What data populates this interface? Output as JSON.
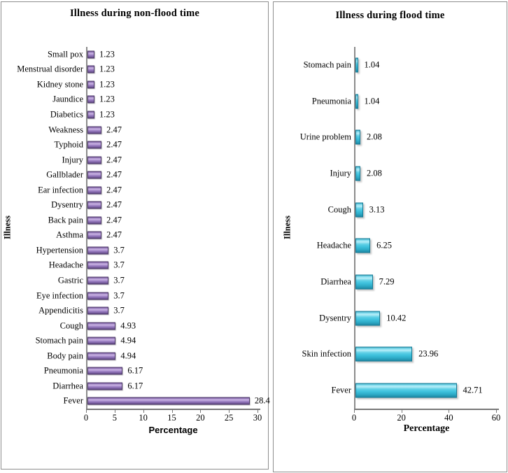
{
  "chart_data": [
    {
      "type": "bar",
      "orientation": "horizontal",
      "title": "Illness during non-flood time",
      "xlabel": "Percentage",
      "ylabel": "Illness",
      "categories": [
        "Small pox",
        "Menstrual disorder",
        "Kidney stone",
        "Jaundice",
        "Diabetics",
        "Weakness",
        "Typhoid",
        "Injury",
        "Gallblader",
        "Ear infection",
        "Dysentry",
        "Back pain",
        "Asthma",
        "Hypertension",
        "Headache",
        "Gastric",
        "Eye infection",
        "Appendicitis",
        "Cough",
        "Stomach pain",
        "Body pain",
        "Pneumonia",
        "Diarrhea",
        "Fever"
      ],
      "values": [
        1.23,
        1.23,
        1.23,
        1.23,
        1.23,
        2.47,
        2.47,
        2.47,
        2.47,
        2.47,
        2.47,
        2.47,
        2.47,
        3.7,
        3.7,
        3.7,
        3.7,
        3.7,
        4.93,
        4.94,
        4.94,
        6.17,
        6.17,
        28.4
      ],
      "value_labels": [
        "1.23",
        "1.23",
        "1.23",
        "1.23",
        "1.23",
        "2.47",
        "2.47",
        "2.47",
        "2.47",
        "2.47",
        "2.47",
        "2.47",
        "2.47",
        "3.7",
        "3.7",
        "3.7",
        "3.7",
        "3.7",
        "4.93",
        "4.94",
        "4.94",
        "6.17",
        "6.17",
        "28.4"
      ],
      "x_ticks": [
        0,
        5,
        10,
        15,
        20,
        25,
        30
      ],
      "xlim": [
        0,
        30
      ],
      "bar_color": "#8d6fb3",
      "bar_border_color": "#4d3969",
      "grid": false,
      "legend": false
    },
    {
      "type": "bar",
      "orientation": "horizontal",
      "title": "Illness during flood time",
      "xlabel": "Percentage",
      "ylabel": "Illness",
      "categories": [
        "Stomach pain",
        "Pneumonia",
        "Urine problem",
        "Injury",
        "Cough",
        "Headache",
        "Diarrhea",
        "Dysentry",
        "Skin infection",
        "Fever"
      ],
      "values": [
        1.04,
        1.04,
        2.08,
        2.08,
        3.13,
        6.25,
        7.29,
        10.42,
        23.96,
        42.71
      ],
      "value_labels": [
        "1.04",
        "1.04",
        "2.08",
        "2.08",
        "3.13",
        "6.25",
        "7.29",
        "10.42",
        "23.96",
        "42.71"
      ],
      "x_ticks": [
        0,
        20,
        40,
        60
      ],
      "xlim": [
        0,
        60
      ],
      "bar_color": "#3fc2dd",
      "bar_border_color": "#157a95",
      "grid": false,
      "legend": false
    }
  ]
}
